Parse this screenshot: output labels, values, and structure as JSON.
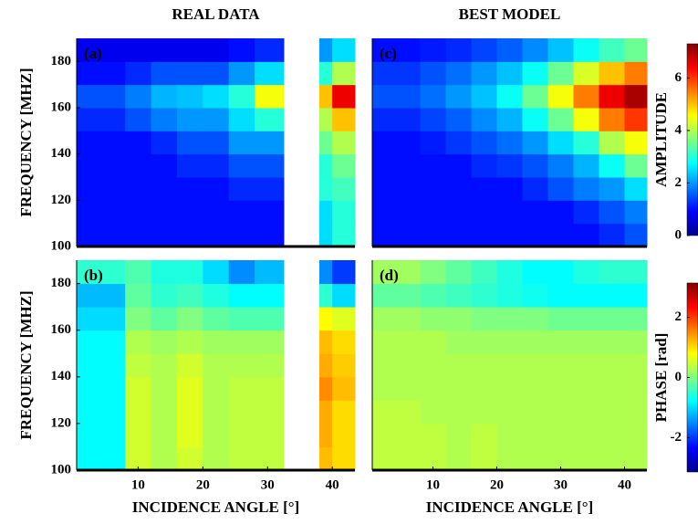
{
  "chart_data": [
    {
      "type": "heatmap",
      "title": "REAL DATA",
      "panel_label": "(a)",
      "ylabel": "FREQUENCY [MHZ]",
      "xlim": [
        0.5,
        43.5
      ],
      "ylim": [
        100,
        190
      ],
      "yticks": [
        100,
        120,
        140,
        160,
        180
      ],
      "x_edges": [
        0.5,
        8,
        12,
        16,
        20,
        24,
        28,
        32.5,
        38,
        40,
        43.5
      ],
      "y_edges": [
        100,
        110,
        120,
        130,
        140,
        150,
        160,
        170,
        180,
        190
      ],
      "zlim": [
        0,
        7.3
      ],
      "values": [
        [
          1,
          1,
          1,
          1,
          1,
          1,
          1,
          null,
          2.5,
          3
        ],
        [
          1,
          1,
          1,
          1,
          1,
          1,
          1,
          null,
          2.5,
          3
        ],
        [
          1,
          1,
          1,
          1,
          1,
          1.2,
          1.2,
          null,
          3,
          3.2
        ],
        [
          1,
          1,
          1,
          1.2,
          1.2,
          1.5,
          1.5,
          null,
          3,
          3.5
        ],
        [
          1,
          1,
          1.2,
          1.5,
          1.5,
          2,
          2,
          null,
          3.5,
          4
        ],
        [
          1.2,
          1.5,
          1.8,
          2,
          2,
          2.5,
          3,
          null,
          4,
          5
        ],
        [
          1.5,
          1.8,
          2.2,
          2.3,
          2.5,
          3,
          4.5,
          null,
          5,
          6.5
        ],
        [
          1,
          1.2,
          1.5,
          1.5,
          1.5,
          2,
          2.5,
          null,
          3,
          4
        ],
        [
          0.8,
          0.8,
          0.8,
          0.8,
          0.8,
          1,
          1.2,
          null,
          2,
          2.5
        ]
      ]
    },
    {
      "type": "heatmap",
      "panel_label": "(b)",
      "ylabel": "FREQUENCY [MHZ]",
      "xlabel": "INCIDENCE ANGLE [°]",
      "xlim": [
        0.5,
        43.5
      ],
      "ylim": [
        100,
        190
      ],
      "xticks": [
        10,
        20,
        30,
        40
      ],
      "yticks": [
        100,
        120,
        140,
        160,
        180
      ],
      "x_edges": [
        0.5,
        8,
        12,
        16,
        20,
        24,
        28,
        32.5,
        38,
        40,
        43.5
      ],
      "y_edges": [
        100,
        110,
        120,
        130,
        140,
        150,
        160,
        170,
        180,
        190
      ],
      "zlim": [
        -3.14,
        3.14
      ],
      "values": [
        [
          -0.8,
          0.5,
          0.3,
          0.5,
          0.3,
          0.4,
          0.4,
          null,
          1.2,
          1
        ],
        [
          -0.8,
          0.5,
          0.3,
          0.6,
          0.3,
          0.4,
          0.4,
          null,
          1.3,
          1
        ],
        [
          -0.8,
          0.5,
          0.3,
          0.6,
          0.3,
          0.4,
          0.4,
          null,
          1.3,
          1
        ],
        [
          -0.8,
          0.5,
          0.3,
          0.6,
          0.3,
          0.4,
          0.4,
          null,
          1.5,
          1.2
        ],
        [
          -0.8,
          0.4,
          0.3,
          0.5,
          0.3,
          0.3,
          0.3,
          null,
          1.3,
          1.1
        ],
        [
          -0.8,
          0.3,
          0.2,
          0.3,
          0.2,
          0.2,
          0.2,
          null,
          1.2,
          1
        ],
        [
          -1,
          0,
          -0.2,
          0,
          -0.2,
          -0.3,
          -0.3,
          null,
          0.8,
          0.6
        ],
        [
          -1.2,
          -0.2,
          -0.5,
          -0.4,
          -0.6,
          -0.8,
          -0.8,
          null,
          -0.5,
          -1
        ],
        [
          -0.5,
          -0.3,
          -0.6,
          -0.6,
          -1,
          -1.5,
          -1.2,
          null,
          -1.5,
          -2
        ]
      ]
    },
    {
      "type": "heatmap",
      "title": "BEST MODEL",
      "panel_label": "(c)",
      "xlim": [
        0.5,
        43.5
      ],
      "ylim": [
        100,
        190
      ],
      "x_edges": [
        0.5,
        8,
        12,
        16,
        20,
        24,
        28,
        32,
        36,
        40,
        43.5
      ],
      "y_edges": [
        100,
        110,
        120,
        130,
        140,
        150,
        160,
        170,
        180,
        190
      ],
      "zlim": [
        0,
        7.3
      ],
      "colorbar": {
        "label": "AMPLITUDE",
        "ticks": [
          0,
          2,
          4,
          6
        ]
      },
      "values": [
        [
          1,
          1,
          1,
          1,
          1,
          1,
          1,
          1,
          1.2,
          1.5
        ],
        [
          1,
          1,
          1,
          1,
          1,
          1,
          1,
          1.2,
          1.5,
          1.8
        ],
        [
          1,
          1,
          1,
          1,
          1,
          1.2,
          1.5,
          1.8,
          2,
          2.5
        ],
        [
          1,
          1,
          1,
          1.2,
          1.3,
          1.5,
          1.8,
          2.2,
          2.8,
          3.5
        ],
        [
          1,
          1.1,
          1.3,
          1.5,
          1.7,
          2,
          2.5,
          3,
          4,
          4.5
        ],
        [
          1.2,
          1.4,
          1.6,
          1.9,
          2.2,
          2.8,
          3.5,
          4.5,
          5.5,
          6
        ],
        [
          1.5,
          1.7,
          2,
          2.3,
          2.8,
          3.5,
          4.5,
          5.5,
          6.5,
          7
        ],
        [
          1.3,
          1.5,
          1.7,
          2,
          2.3,
          2.8,
          3.5,
          4.3,
          5,
          5.5
        ],
        [
          1,
          1.1,
          1.2,
          1.4,
          1.6,
          1.9,
          2.3,
          2.8,
          3.2,
          3.5
        ]
      ]
    },
    {
      "type": "heatmap",
      "panel_label": "(d)",
      "xlabel": "INCIDENCE ANGLE [°]",
      "xlim": [
        0.5,
        43.5
      ],
      "ylim": [
        100,
        190
      ],
      "xticks": [
        10,
        20,
        30,
        40
      ],
      "x_edges": [
        0.5,
        8,
        12,
        16,
        20,
        24,
        28,
        32,
        36,
        40,
        43.5
      ],
      "y_edges": [
        100,
        110,
        120,
        130,
        140,
        150,
        160,
        170,
        180,
        190
      ],
      "zlim": [
        -3.14,
        3.14
      ],
      "colorbar": {
        "label": "PHASE [rad]",
        "ticks": [
          -2,
          0,
          2
        ]
      },
      "values": [
        [
          0.4,
          0.4,
          0.3,
          0.4,
          0.3,
          0.3,
          0.3,
          0.3,
          0.3,
          0.3
        ],
        [
          0.4,
          0.4,
          0.3,
          0.4,
          0.3,
          0.3,
          0.3,
          0.3,
          0.3,
          0.3
        ],
        [
          0.4,
          0.3,
          0.3,
          0.3,
          0.3,
          0.3,
          0.3,
          0.3,
          0.3,
          0.3
        ],
        [
          0.3,
          0.3,
          0.3,
          0.3,
          0.3,
          0.3,
          0.3,
          0.3,
          0.3,
          0.3
        ],
        [
          0.3,
          0.3,
          0.3,
          0.3,
          0.3,
          0.3,
          0.3,
          0.3,
          0.3,
          0.3
        ],
        [
          0.3,
          0.3,
          0.2,
          0.2,
          0.2,
          0.2,
          0.2,
          0.2,
          0.2,
          0.2
        ],
        [
          0.2,
          0.1,
          0.1,
          0,
          0,
          0,
          -0.1,
          -0.1,
          -0.1,
          -0.1
        ],
        [
          -0.2,
          -0.3,
          -0.4,
          -0.5,
          -0.6,
          -0.7,
          -0.8,
          -0.8,
          -0.8,
          -0.8
        ],
        [
          0.2,
          0,
          -0.2,
          -0.4,
          -0.6,
          -0.8,
          -0.8,
          -0.6,
          -0.5,
          -0.5
        ]
      ]
    }
  ]
}
